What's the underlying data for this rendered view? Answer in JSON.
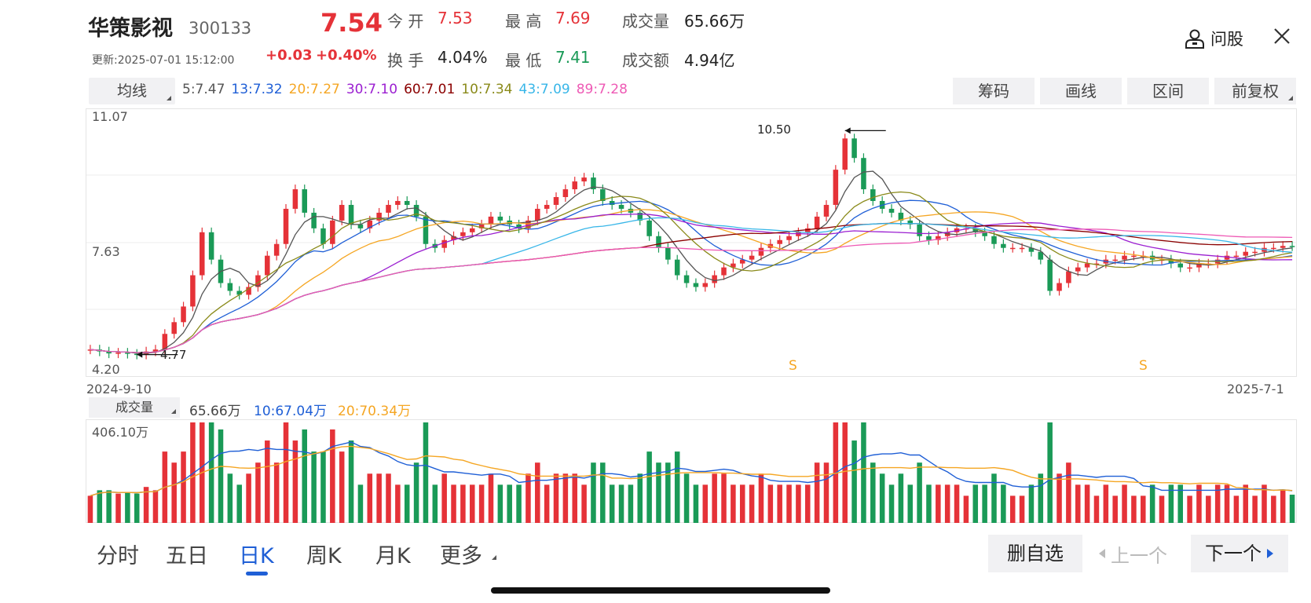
{
  "stock": {
    "name": "华策影视",
    "code": "300133",
    "price": "7.54",
    "update": "更新:2025-07-01 15:12:00",
    "change": "+0.03",
    "change_pct": "+0.40%",
    "open_label": "今 开",
    "open": "7.53",
    "high_label": "最 高",
    "high": "7.69",
    "volume_label": "成交量",
    "volume": "65.66万",
    "turnover_label": "换 手",
    "turnover": "4.04%",
    "low_label": "最 低",
    "low": "7.41",
    "amount_label": "成交额",
    "amount": "4.94亿"
  },
  "header": {
    "ask_label": "问股"
  },
  "toolbar": {
    "ma_button": "均线",
    "ma_values": [
      {
        "text": "5:7.47",
        "color": "#555555"
      },
      {
        "text": "13:7.32",
        "color": "#1f5fd6"
      },
      {
        "text": "20:7.27",
        "color": "#f5a623"
      },
      {
        "text": "30:7.10",
        "color": "#9b1fd1"
      },
      {
        "text": "60:7.01",
        "color": "#8b0000"
      },
      {
        "text": "10:7.34",
        "color": "#8a8a1a"
      },
      {
        "text": "43:7.09",
        "color": "#38b6e8"
      },
      {
        "text": "89:7.28",
        "color": "#ee5ab5"
      }
    ],
    "chips_button": "筹码",
    "draw_button": "画线",
    "range_button": "区间",
    "adjust_button": "前复权"
  },
  "chart": {
    "y_top": "11.07",
    "y_mid": "7.63",
    "y_bottom": "4.20",
    "x_start": "2024-9-10",
    "x_end": "2025-7-1",
    "max_annotation": "10.50",
    "min_annotation": "4.77",
    "signal_1": "S",
    "signal_2": "S"
  },
  "volume": {
    "button": "成交量",
    "current": "65.66万",
    "ma10": "10:67.04万",
    "ma20": "20:70.34万",
    "ma10_color": "#1f5fd6",
    "ma20_color": "#f5a623",
    "y_top": "406.10万"
  },
  "tabs": [
    "分时",
    "五日",
    "日K",
    "周K",
    "月K",
    "更多"
  ],
  "active_tab": "日K",
  "bottom": {
    "watchlist_button": "删自选",
    "prev_button": "上一个",
    "next_button": "下一个"
  },
  "chart_data": {
    "type": "candlestick",
    "x_range": [
      "2024-9-10",
      "2025-7-1"
    ],
    "y_range": [
      4.2,
      11.07
    ],
    "price_close": [
      4.9,
      4.85,
      4.8,
      4.82,
      4.79,
      4.77,
      4.85,
      4.9,
      5.3,
      5.6,
      6.0,
      6.8,
      7.9,
      7.2,
      6.6,
      6.4,
      6.3,
      6.5,
      6.8,
      7.3,
      7.6,
      8.5,
      9.0,
      8.4,
      8.0,
      7.6,
      8.2,
      8.6,
      8.1,
      8.0,
      8.2,
      8.4,
      8.6,
      8.7,
      8.6,
      8.3,
      7.6,
      7.5,
      7.7,
      7.8,
      7.9,
      8.0,
      8.1,
      8.3,
      8.2,
      8.1,
      8.0,
      8.2,
      8.5,
      8.6,
      8.8,
      9.0,
      9.2,
      9.3,
      9.0,
      8.7,
      8.6,
      8.5,
      8.4,
      8.2,
      7.8,
      7.5,
      7.2,
      6.8,
      6.6,
      6.5,
      6.6,
      6.8,
      7.0,
      7.1,
      7.2,
      7.3,
      7.5,
      7.6,
      7.7,
      7.8,
      7.9,
      8.0,
      8.3,
      8.6,
      9.5,
      10.3,
      9.8,
      9.0,
      8.7,
      8.5,
      8.4,
      8.2,
      8.1,
      7.8,
      7.7,
      7.8,
      7.9,
      8.0,
      8.0,
      7.9,
      7.8,
      7.6,
      7.5,
      7.5,
      7.5,
      7.4,
      7.2,
      6.4,
      6.6,
      6.9,
      7.0,
      7.1,
      7.1,
      7.2,
      7.2,
      7.3,
      7.3,
      7.3,
      7.2,
      7.2,
      7.1,
      7.0,
      7.0,
      7.1,
      7.1,
      7.2,
      7.3,
      7.3,
      7.4,
      7.4,
      7.5,
      7.5,
      7.55,
      7.54
    ],
    "volume_peak": "406.10万"
  }
}
